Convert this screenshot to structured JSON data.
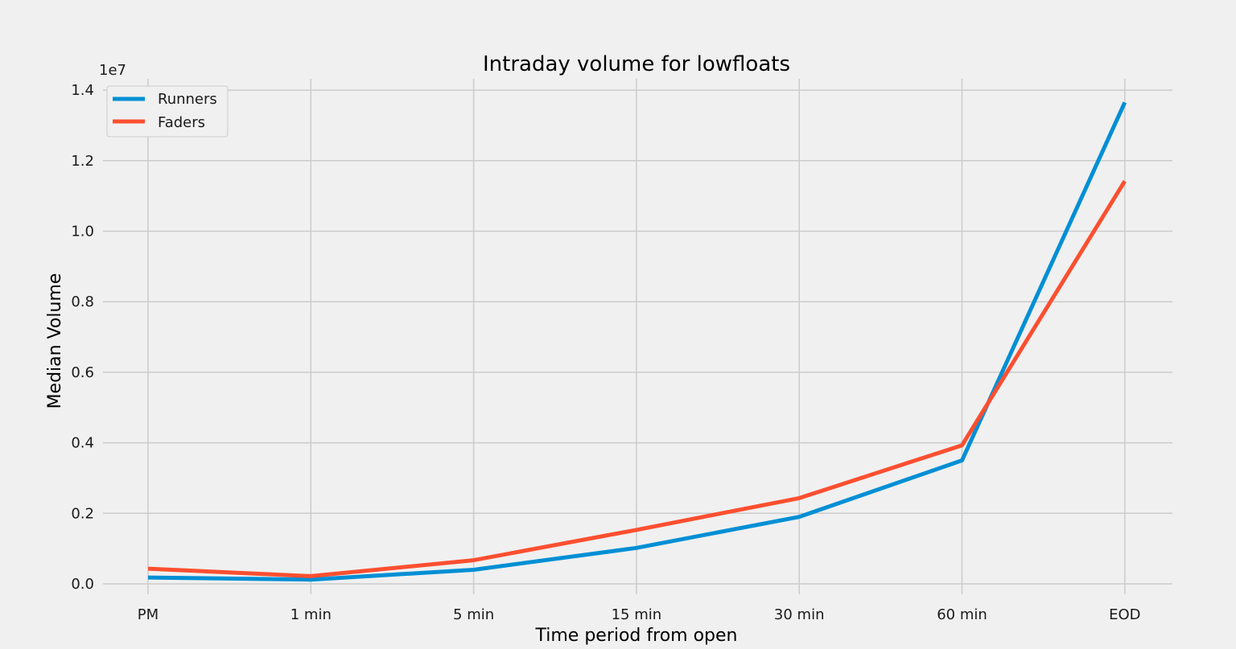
{
  "chart_data": {
    "type": "line",
    "title": "Intraday volume for lowfloats",
    "xlabel": "Time period from open",
    "ylabel": "Median Volume",
    "y_offset_label": "1e7",
    "categories": [
      "PM",
      "1 min",
      "5 min",
      "15 min",
      "30 min",
      "60 min",
      "EOD"
    ],
    "y_ticks": [
      "0.0",
      "0.2",
      "0.4",
      "0.6",
      "0.8",
      "1.0",
      "1.2",
      "1.4"
    ],
    "y_tick_values": [
      0,
      0.2,
      0.4,
      0.6,
      0.8,
      1.0,
      1.2,
      1.4
    ],
    "ylim": [
      -0.03,
      1.43
    ],
    "grid": true,
    "legend_position": "top-left",
    "series": [
      {
        "name": "Runners",
        "color": "#008fd5",
        "values": [
          0.018,
          0.012,
          0.04,
          0.102,
          0.19,
          0.35,
          1.365
        ]
      },
      {
        "name": "Faders",
        "color": "#fc4f30",
        "values": [
          0.043,
          0.022,
          0.067,
          0.153,
          0.243,
          0.393,
          1.142
        ]
      }
    ]
  }
}
